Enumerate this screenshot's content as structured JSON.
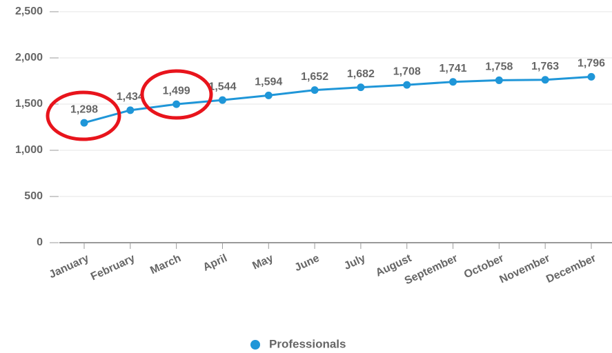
{
  "chart_data": {
    "type": "line",
    "categories": [
      "January",
      "February",
      "March",
      "April",
      "May",
      "June",
      "July",
      "August",
      "September",
      "October",
      "November",
      "December"
    ],
    "series": [
      {
        "name": "Professionals",
        "color": "#1f96d8",
        "values": [
          1298,
          1434,
          1499,
          1544,
          1594,
          1652,
          1682,
          1708,
          1741,
          1758,
          1763,
          1796
        ],
        "value_labels": [
          "1,298",
          "1,434",
          "1,499",
          "1,544",
          "1,594",
          "1,652",
          "1,682",
          "1,708",
          "1,741",
          "1,758",
          "1,763",
          "1,796"
        ]
      }
    ],
    "ylim": [
      0,
      2500
    ],
    "yticks": [
      0,
      500,
      {
        "value": 1000,
        "label": "1,000"
      },
      {
        "value": 1500,
        "label": "1,500"
      },
      {
        "value": 2000,
        "label": "2,000"
      },
      {
        "value": 2500,
        "label": "2,500"
      }
    ],
    "grid": true,
    "legend": "bottom"
  }
}
